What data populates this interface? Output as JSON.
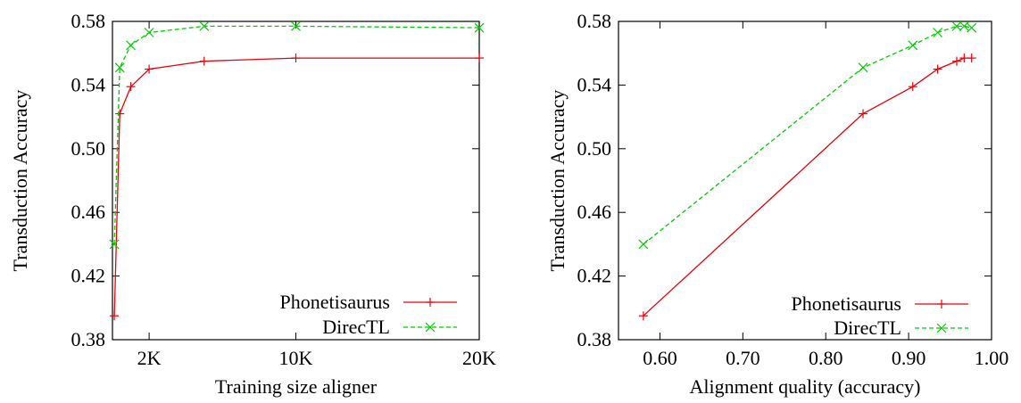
{
  "chart_data": [
    {
      "type": "line",
      "xlabel": "Training size aligner",
      "ylabel": "Transduction Accuracy",
      "x_scale": "linear",
      "xlim": [
        0,
        20000
      ],
      "ylim": [
        0.38,
        0.58
      ],
      "x_ticks": [
        {
          "value": 2000,
          "label": "2K"
        },
        {
          "value": 10000,
          "label": "10K"
        },
        {
          "value": 20000,
          "label": "20K"
        }
      ],
      "y_ticks": [
        0.38,
        0.42,
        0.46,
        0.5,
        0.54,
        0.58
      ],
      "y_tick_labels": [
        "0.38",
        "0.42",
        "0.46",
        "0.50",
        "0.54",
        "0.58"
      ],
      "grid": false,
      "legend_position": "bottom-right",
      "series": [
        {
          "name": "Phonetisaurus",
          "color": "#e8000b",
          "dashed": false,
          "marker": "plus",
          "x": [
            100,
            400,
            1000,
            2000,
            5000,
            10000,
            20000
          ],
          "y": [
            0.395,
            0.522,
            0.539,
            0.55,
            0.555,
            0.557,
            0.557
          ]
        },
        {
          "name": "DirecTL",
          "color": "#00cc00",
          "dashed": true,
          "marker": "cross",
          "x": [
            100,
            400,
            1000,
            2000,
            5000,
            10000,
            20000
          ],
          "y": [
            0.44,
            0.551,
            0.565,
            0.573,
            0.577,
            0.577,
            0.576
          ]
        }
      ]
    },
    {
      "type": "line",
      "xlabel": "Alignment quality (accuracy)",
      "ylabel": "Transduction Accuracy",
      "x_scale": "linear",
      "xlim": [
        0.55,
        1.0
      ],
      "ylim": [
        0.38,
        0.58
      ],
      "x_ticks": [
        {
          "value": 0.6,
          "label": "0.60"
        },
        {
          "value": 0.7,
          "label": "0.70"
        },
        {
          "value": 0.8,
          "label": "0.80"
        },
        {
          "value": 0.9,
          "label": "0.90"
        },
        {
          "value": 1.0,
          "label": "1.00"
        }
      ],
      "y_ticks": [
        0.38,
        0.42,
        0.46,
        0.5,
        0.54,
        0.58
      ],
      "y_tick_labels": [
        "0.38",
        "0.42",
        "0.46",
        "0.50",
        "0.54",
        "0.58"
      ],
      "grid": false,
      "legend_position": "bottom-right",
      "series": [
        {
          "name": "Phonetisaurus",
          "color": "#e8000b",
          "dashed": false,
          "marker": "plus",
          "x": [
            0.58,
            0.845,
            0.905,
            0.935,
            0.958,
            0.967,
            0.976
          ],
          "y": [
            0.395,
            0.522,
            0.539,
            0.55,
            0.555,
            0.557,
            0.557
          ]
        },
        {
          "name": "DirecTL",
          "color": "#00cc00",
          "dashed": true,
          "marker": "cross",
          "x": [
            0.58,
            0.845,
            0.905,
            0.935,
            0.958,
            0.967,
            0.976
          ],
          "y": [
            0.44,
            0.551,
            0.565,
            0.573,
            0.577,
            0.577,
            0.576
          ]
        }
      ]
    }
  ]
}
